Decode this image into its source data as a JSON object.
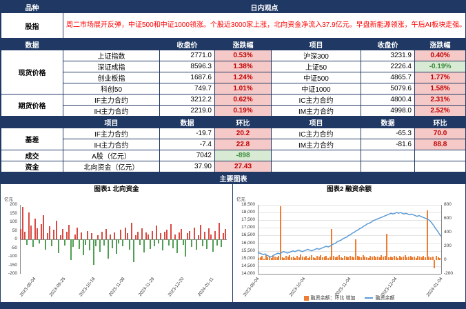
{
  "colors": {
    "navy": "#1f3864",
    "red_text": "#c00000",
    "pink_bg": "#f5c9c7",
    "green_text": "#3a8a3a",
    "green_bg": "#d8e9d4",
    "bar_up": "#d94a42",
    "bar_down": "#4f9e52",
    "line_blue": "#5b9bd5",
    "bar_orange": "#ed7d31"
  },
  "top": {
    "variety_header": "品种",
    "view_header": "日内观点"
  },
  "commentary": {
    "label": "股指",
    "text": "周二市场展开反弹，中证500和中证1000领涨。个股近3000家上涨，北向资金净流入37.9亿元。早盘新能源领涨，午后AI板块走强。"
  },
  "price_table": {
    "left_header": "数据",
    "headers": {
      "close_l": "收盘价",
      "chg_l": "涨跌幅",
      "item_r": "项目",
      "close_r": "收盘价",
      "chg_r": "涨跌幅"
    },
    "spot_label": "现货价格",
    "futures_label": "期货价格",
    "spot_rows": [
      {
        "item_l": "上证指数",
        "close_l": "2771.0",
        "chg_l": "0.53%",
        "item_r": "沪深300",
        "close_r": "3231.9",
        "chg_r": "0.40%"
      },
      {
        "item_l": "深证成指",
        "close_l": "8596.3",
        "chg_l": "1.38%",
        "item_r": "上证50",
        "close_r": "2226.4",
        "chg_r": "-0.19%"
      },
      {
        "item_l": "创业板指",
        "close_l": "1687.6",
        "chg_l": "1.24%",
        "item_r": "中证500",
        "close_r": "4865.7",
        "chg_r": "1.77%"
      },
      {
        "item_l": "科创50",
        "close_l": "749.7",
        "chg_l": "1.01%",
        "item_r": "中证1000",
        "close_r": "5079.6",
        "chg_r": "1.58%"
      }
    ],
    "futures_rows": [
      {
        "item_l": "IF主力合约",
        "close_l": "3212.2",
        "chg_l": "0.62%",
        "item_r": "IC主力合约",
        "close_r": "4800.4",
        "chg_r": "2.31%"
      },
      {
        "item_l": "IH主力合约",
        "close_l": "2219.0",
        "chg_l": "0.19%",
        "item_r": "IM主力合约",
        "close_r": "4998.0",
        "chg_r": "2.52%"
      }
    ]
  },
  "detail_table": {
    "headers": {
      "item_l": "项目",
      "data_l": "数据",
      "mom_l": "环比",
      "item_r": "项目",
      "data_r": "数据",
      "mom_r": "环比"
    },
    "basis_label": "基差",
    "basis_rows": [
      {
        "item_l": "IF主力合约",
        "data_l": "-19.7",
        "mom_l": "20.2",
        "item_r": "IC主力合约",
        "data_r": "-65.3",
        "mom_r": "70.0"
      },
      {
        "item_l": "IH主力合约",
        "data_l": "-7.4",
        "mom_l": "22.8",
        "item_r": "IM主力合约",
        "data_r": "-81.6",
        "mom_r": "88.8"
      }
    ],
    "turnover": {
      "label": "成交",
      "item": "A股（亿元）",
      "data": "7042",
      "mom": "-898"
    },
    "funds": {
      "label": "资金",
      "item": "北向资金（亿元）",
      "data": "37.90",
      "mom": "27.43"
    }
  },
  "charts_section_title": "主要图表",
  "chart_data": [
    {
      "type": "bar",
      "title": "图表1 北向资金",
      "unit": "亿元",
      "ylim": [
        -200,
        200
      ],
      "yticks": [
        200,
        150,
        100,
        50,
        0,
        -50,
        -100,
        -150,
        -200
      ],
      "xticklabels": [
        "2023-09-04",
        "2023-09-25",
        "2023-10-18",
        "2023-11-08",
        "2023-11-29",
        "2023-12-20",
        "2024-01-11"
      ],
      "values": [
        62,
        188,
        45,
        -30,
        155,
        80,
        -45,
        120,
        65,
        -25,
        90,
        140,
        -60,
        35,
        75,
        -40,
        55,
        110,
        -80,
        25,
        60,
        -35,
        45,
        85,
        -120,
        -45,
        30,
        70,
        -55,
        40,
        -90,
        -30,
        50,
        -65,
        35,
        -148,
        -40,
        25,
        -70,
        45,
        -35,
        60,
        -110,
        30,
        -50,
        40,
        -85,
        -25,
        55,
        -40,
        70,
        35,
        -60,
        95,
        -130,
        25,
        45,
        -30,
        65,
        -75,
        40,
        30,
        -55,
        50,
        -40,
        80,
        -25,
        35,
        -65,
        45,
        55,
        -35,
        90,
        -50,
        30,
        -80,
        40,
        60,
        -30,
        -100,
        35,
        50,
        -45,
        70,
        -60,
        25,
        85,
        -40,
        45,
        -55,
        65,
        30,
        -70,
        50,
        -35,
        95,
        -45,
        38,
        60
      ]
    },
    {
      "type": "line",
      "title": "图表2 融资余额",
      "unit": "亿元",
      "ylim_left": [
        14000,
        18500
      ],
      "yticks_left": [
        "18,500",
        "18,000",
        "17,500",
        "17,000",
        "16,500",
        "16,000",
        "15,500",
        "15,000",
        "14,500",
        "14,000"
      ],
      "ylim_right": [
        -200,
        800
      ],
      "yticks_right": [
        "800",
        "600",
        "400",
        "200",
        "0",
        "-200"
      ],
      "xticklabels": [
        "2023-09-04",
        "2023-10-04",
        "2023-11-04",
        "2023-12-04",
        "2024-01-04"
      ],
      "legend": [
        "融资余额：环比 增加",
        "融资余额"
      ],
      "series": [
        {
          "name": "融资余额：环比 增加",
          "type": "bar",
          "axis": "right",
          "values": [
            30,
            45,
            60,
            25,
            80,
            40,
            55,
            35,
            70,
            50,
            40,
            65,
            780,
            45,
            30,
            60,
            50,
            75,
            40,
            55,
            35,
            60,
            45,
            80,
            50,
            40,
            65,
            30,
            55,
            70,
            45,
            35,
            60,
            50,
            75,
            40,
            55,
            65,
            30,
            50,
            450,
            60,
            40,
            55,
            70,
            45,
            35,
            60,
            50,
            40,
            65,
            55,
            45,
            300,
            60,
            50,
            40,
            70,
            55,
            45,
            35,
            60,
            50,
            65,
            40,
            55,
            45,
            70,
            50,
            60,
            380,
            45,
            55,
            40,
            65,
            50,
            35,
            60,
            45,
            55,
            70,
            40,
            50,
            60,
            45,
            55,
            35,
            65,
            50,
            40,
            60,
            45,
            720,
            55,
            40,
            50,
            -120,
            60,
            45,
            35
          ]
        },
        {
          "name": "融资余额",
          "type": "line",
          "axis": "left",
          "values": [
            15400,
            15350,
            15300,
            15250,
            15300,
            15200,
            15150,
            15100,
            15150,
            15250,
            15300,
            15350,
            15300,
            15400,
            15450,
            15400,
            15350,
            15400,
            15450,
            15500,
            15450,
            15500,
            15550,
            15500,
            15450,
            15500,
            15550,
            15600,
            15550,
            15500,
            15550,
            15600,
            15650,
            15600,
            15650,
            15700,
            15750,
            15800,
            15750,
            15800,
            15900,
            15950,
            16000,
            16100,
            16150,
            16200,
            16300,
            16350,
            16400,
            16500,
            16550,
            16650,
            16700,
            16800,
            16850,
            16950,
            17000,
            17100,
            17150,
            17250,
            17300,
            17350,
            17450,
            17500,
            17550,
            17600,
            17650,
            17700,
            17750,
            17800,
            17850,
            17900,
            17950,
            17900,
            17950,
            18000,
            17950,
            18000,
            17950,
            17900,
            17950,
            17900,
            17850,
            17900,
            17850,
            17800,
            17750,
            17800,
            17750,
            17700,
            17650,
            17600,
            17550,
            17450,
            17300,
            17150,
            16950,
            16800,
            16600,
            16450
          ]
        }
      ]
    }
  ]
}
